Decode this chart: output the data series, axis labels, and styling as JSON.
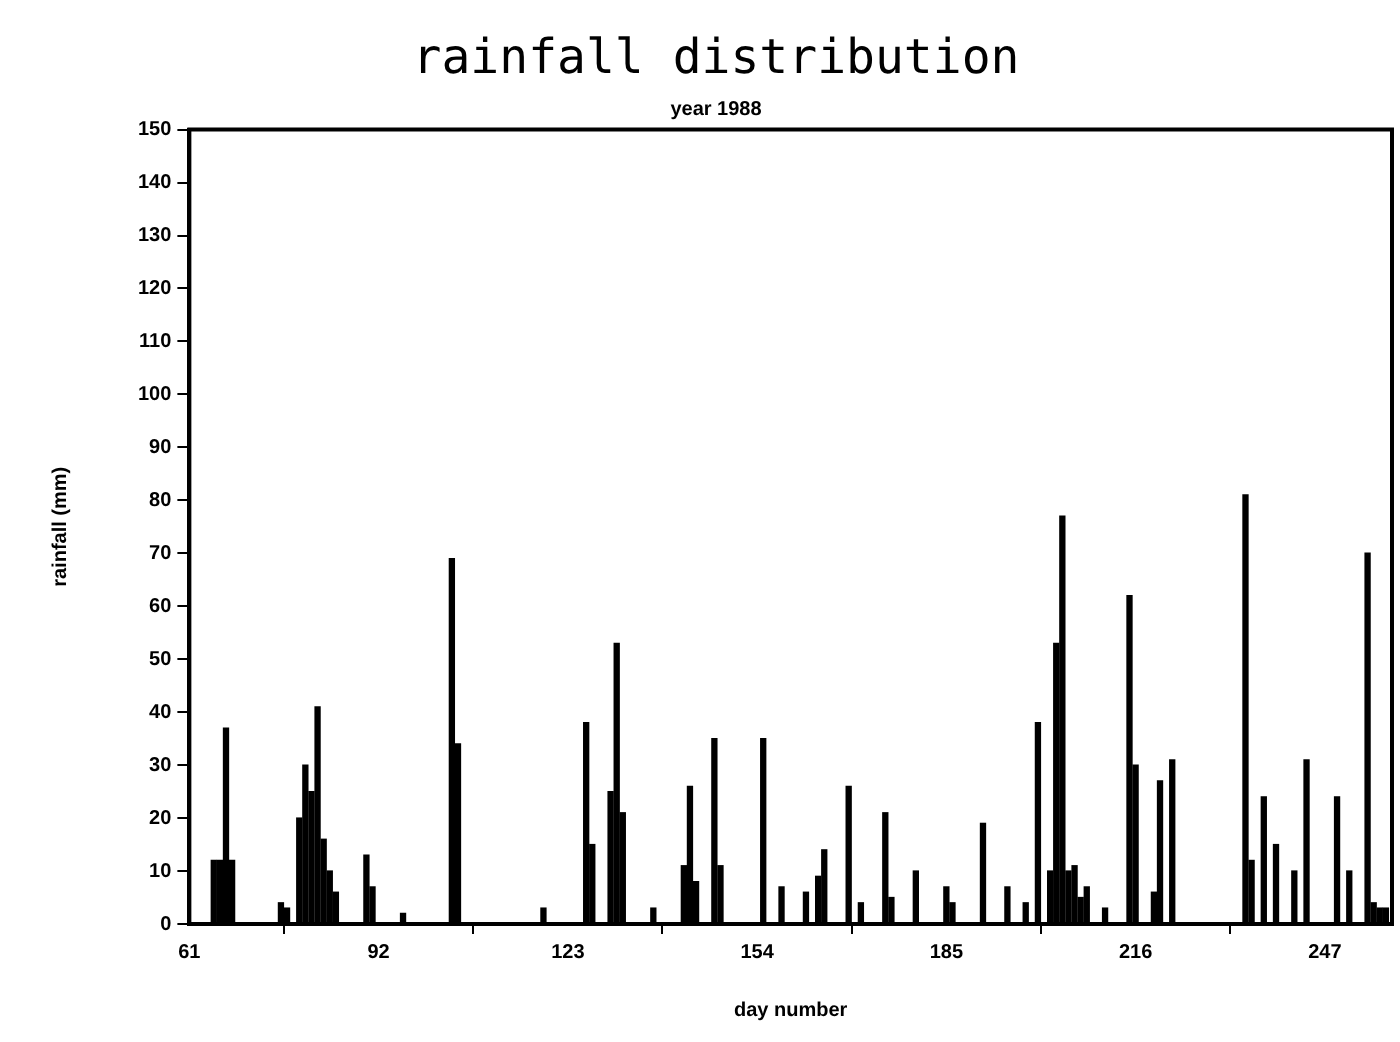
{
  "chart_data": {
    "type": "bar",
    "title": "rainfall distribution",
    "subtitle": "year 1988",
    "xlabel": "day number",
    "ylabel": "rainfall (mm)",
    "x": [
      65,
      66,
      67,
      68,
      76,
      77,
      79,
      80,
      81,
      82,
      83,
      84,
      85,
      90,
      91,
      96,
      104,
      105,
      119,
      126,
      127,
      130,
      131,
      132,
      137,
      142,
      143,
      144,
      147,
      148,
      155,
      158,
      162,
      164,
      165,
      169,
      171,
      175,
      176,
      180,
      185,
      186,
      191,
      195,
      198,
      200,
      202,
      203,
      204,
      205,
      206,
      207,
      208,
      211,
      215,
      216,
      219,
      220,
      222,
      234,
      235,
      237,
      239,
      242,
      244,
      249,
      251,
      254,
      255,
      256,
      257
    ],
    "values": [
      12,
      12,
      37,
      12,
      4,
      3,
      20,
      30,
      25,
      41,
      16,
      10,
      6,
      13,
      7,
      2,
      69,
      34,
      3,
      38,
      15,
      25,
      53,
      21,
      3,
      11,
      26,
      8,
      35,
      11,
      35,
      7,
      6,
      9,
      14,
      26,
      4,
      21,
      5,
      10,
      7,
      4,
      19,
      7,
      4,
      38,
      10,
      53,
      77,
      10,
      11,
      5,
      7,
      3,
      62,
      30,
      6,
      27,
      31,
      81,
      12,
      24,
      15,
      10,
      31,
      24,
      10,
      70,
      4,
      3,
      3
    ],
    "color": "#000000",
    "xlim": [
      61,
      258
    ],
    "xticks": [
      61,
      92,
      123,
      154,
      185,
      216,
      247
    ],
    "ylim": [
      0,
      150
    ],
    "yticks": [
      0,
      10,
      20,
      30,
      40,
      50,
      60,
      70,
      80,
      90,
      100,
      110,
      120,
      130,
      140,
      150
    ],
    "grid": false,
    "legend": false
  }
}
